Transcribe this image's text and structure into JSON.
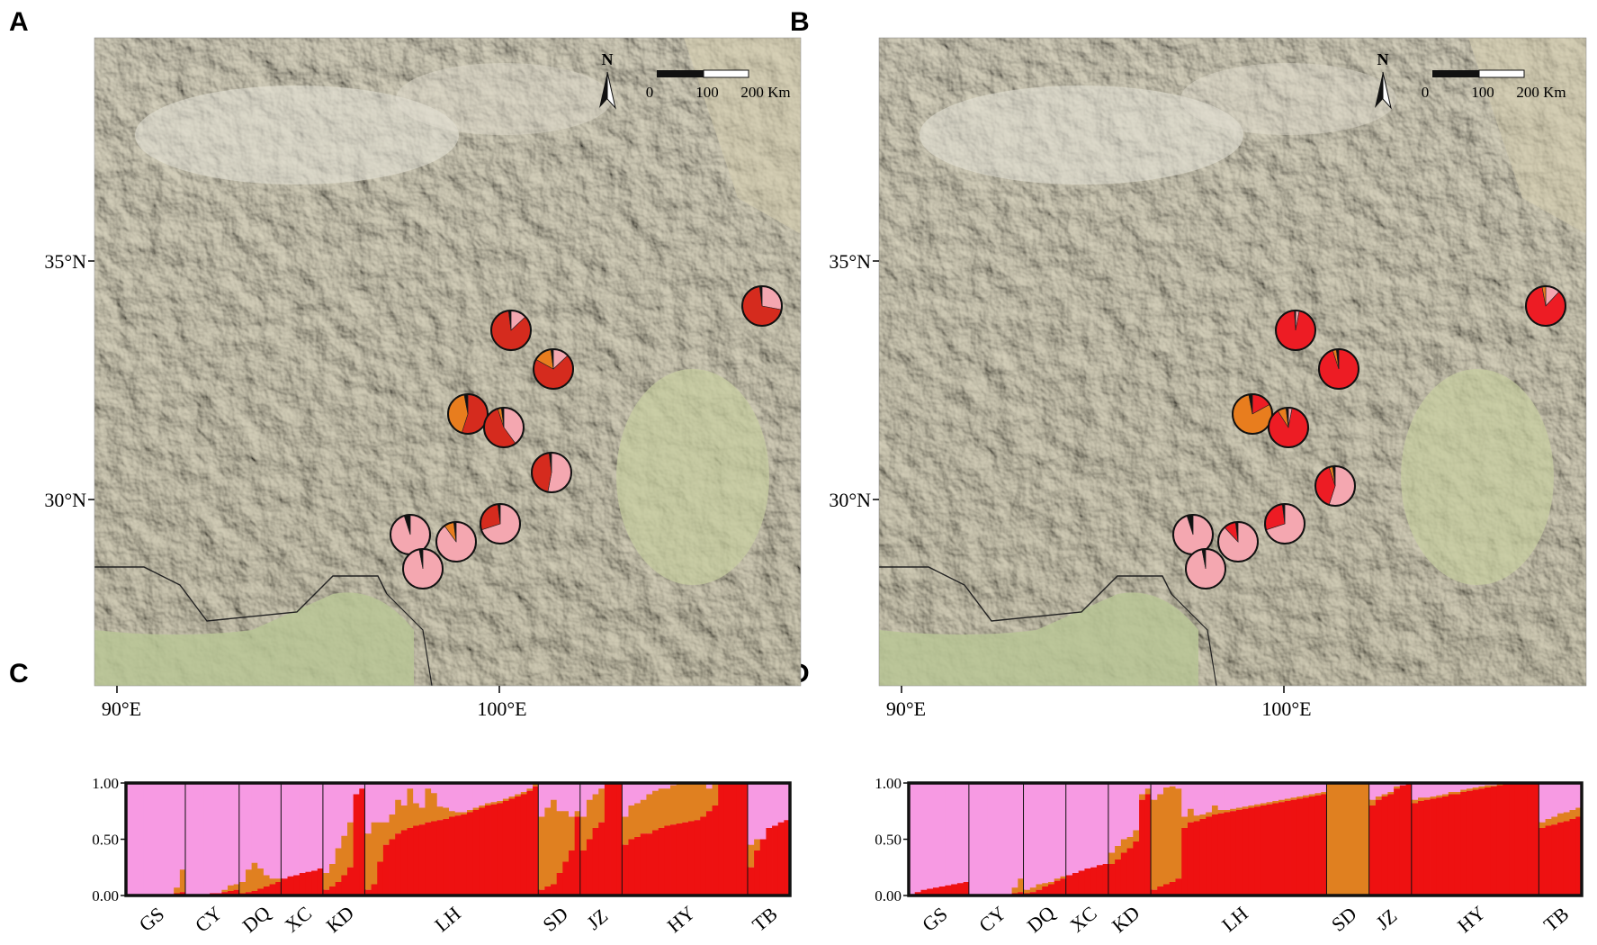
{
  "panels": {
    "A": {
      "letter": "A"
    },
    "B": {
      "letter": "B"
    },
    "C": {
      "letter": "C"
    },
    "D": {
      "letter": "D"
    }
  },
  "map": {
    "lat_labels": [
      "35°N",
      "30°N"
    ],
    "lon_labels": [
      "90°E",
      "100°E"
    ],
    "north_label": "N",
    "scale_ticks": [
      "0",
      "100",
      "200 Km"
    ]
  },
  "colors": {
    "pink": "#f4a7b0",
    "red": "#ed1c24",
    "dark_red": "#d52b1e",
    "orange": "#e87d1e",
    "black": "#111111",
    "bar_pink": "#f79ae3",
    "bar_red": "#ee1111",
    "bar_orange": "#e08020"
  },
  "pies": {
    "A": [
      {
        "fractions": {
          "dark_red": 0.7,
          "pink": 0.28,
          "black": 0.02
        }
      },
      {
        "fractions": {
          "dark_red": 0.85,
          "pink": 0.13,
          "black": 0.02
        }
      },
      {
        "fractions": {
          "dark_red": 0.7,
          "orange": 0.15,
          "pink": 0.13,
          "black": 0.02
        }
      },
      {
        "fractions": {
          "dark_red": 0.55,
          "orange": 0.42,
          "black": 0.03
        }
      },
      {
        "fractions": {
          "dark_red": 0.55,
          "pink": 0.4,
          "orange": 0.03,
          "black": 0.02
        }
      },
      {
        "fractions": {
          "dark_red": 0.45,
          "pink": 0.53,
          "black": 0.02
        }
      },
      {
        "fractions": {
          "pink": 0.7,
          "dark_red": 0.28,
          "black": 0.02
        }
      },
      {
        "fractions": {
          "pink": 0.9,
          "orange": 0.08,
          "black": 0.02
        }
      },
      {
        "fractions": {
          "pink": 0.95,
          "black": 0.05
        }
      },
      {
        "fractions": {
          "pink": 0.97,
          "black": 0.03
        }
      }
    ],
    "B": [
      {
        "fractions": {
          "red": 0.85,
          "pink": 0.12,
          "orange": 0.03
        }
      },
      {
        "fractions": {
          "red": 0.96,
          "pink": 0.03,
          "black": 0.01
        }
      },
      {
        "fractions": {
          "red": 0.95,
          "orange": 0.03,
          "black": 0.02
        }
      },
      {
        "fractions": {
          "orange": 0.8,
          "red": 0.17,
          "black": 0.03
        }
      },
      {
        "fractions": {
          "red": 0.88,
          "orange": 0.07,
          "pink": 0.03,
          "black": 0.02
        }
      },
      {
        "fractions": {
          "pink": 0.55,
          "red": 0.4,
          "orange": 0.03,
          "black": 0.02
        }
      },
      {
        "fractions": {
          "pink": 0.7,
          "red": 0.28,
          "black": 0.02
        }
      },
      {
        "fractions": {
          "pink": 0.88,
          "red": 0.1,
          "black": 0.02
        }
      },
      {
        "fractions": {
          "pink": 0.95,
          "black": 0.05
        }
      },
      {
        "fractions": {
          "pink": 0.97,
          "black": 0.03
        }
      }
    ]
  },
  "structure_C": {
    "yticks": [
      "1.00",
      "0.50",
      "0.00"
    ],
    "groups": [
      {
        "label": "GS",
        "n": 10,
        "red": [
          0,
          0,
          0,
          0,
          0,
          0,
          0,
          0.01,
          0.02,
          0.03
        ],
        "orange": [
          0,
          0,
          0,
          0,
          0,
          0,
          0,
          0,
          0.05,
          0.2
        ]
      },
      {
        "label": "CY",
        "n": 9,
        "red": [
          0,
          0,
          0,
          0,
          0.02,
          0.02,
          0.03,
          0.04,
          0.05
        ],
        "orange": [
          0,
          0,
          0,
          0,
          0,
          0,
          0.02,
          0.05,
          0.05
        ]
      },
      {
        "label": "DQ",
        "n": 7,
        "red": [
          0.02,
          0.03,
          0.04,
          0.06,
          0.08,
          0.1,
          0.12
        ],
        "orange": [
          0.1,
          0.2,
          0.25,
          0.18,
          0.1,
          0.05,
          0.03
        ]
      },
      {
        "label": "XC",
        "n": 7,
        "red": [
          0.15,
          0.17,
          0.18,
          0.2,
          0.21,
          0.22,
          0.24
        ],
        "orange": [
          0,
          0,
          0,
          0,
          0,
          0,
          0
        ]
      },
      {
        "label": "KD",
        "n": 7,
        "red": [
          0.05,
          0.08,
          0.12,
          0.18,
          0.25,
          0.9,
          0.95
        ],
        "orange": [
          0.15,
          0.2,
          0.3,
          0.35,
          0.4,
          0,
          0
        ]
      },
      {
        "label": "LH",
        "n": 29,
        "red": [
          0.05,
          0.1,
          0.3,
          0.45,
          0.5,
          0.55,
          0.58,
          0.6,
          0.62,
          0.63,
          0.65,
          0.66,
          0.67,
          0.68,
          0.7,
          0.71,
          0.72,
          0.74,
          0.76,
          0.78,
          0.8,
          0.81,
          0.82,
          0.84,
          0.86,
          0.88,
          0.9,
          0.93,
          0.97
        ],
        "orange": [
          0.5,
          0.55,
          0.35,
          0.2,
          0.22,
          0.3,
          0.22,
          0.35,
          0.2,
          0.15,
          0.3,
          0.25,
          0.12,
          0.1,
          0.05,
          0.03,
          0.02,
          0.02,
          0.02,
          0.02,
          0.02,
          0.02,
          0.02,
          0.02,
          0.02,
          0.02,
          0.02,
          0.02,
          0.02
        ]
      },
      {
        "label": "SD",
        "n": 7,
        "red": [
          0.05,
          0.08,
          0.1,
          0.2,
          0.3,
          0.4,
          0.7
        ],
        "orange": [
          0.65,
          0.7,
          0.75,
          0.55,
          0.45,
          0.3,
          0.05
        ]
      },
      {
        "label": "JZ",
        "n": 7,
        "red": [
          0.4,
          0.5,
          0.6,
          0.65,
          1.0,
          1.0,
          1.0
        ],
        "orange": [
          0.3,
          0.35,
          0.3,
          0.3,
          0,
          0,
          0
        ]
      },
      {
        "label": "HY",
        "n": 21,
        "red": [
          0.45,
          0.5,
          0.52,
          0.55,
          0.55,
          0.58,
          0.6,
          0.62,
          0.63,
          0.64,
          0.65,
          0.66,
          0.67,
          0.7,
          0.75,
          0.8,
          1.0,
          1.0,
          1.0,
          1.0,
          1.0
        ],
        "orange": [
          0.25,
          0.3,
          0.3,
          0.3,
          0.35,
          0.35,
          0.35,
          0.33,
          0.35,
          0.36,
          0.34,
          0.34,
          0.33,
          0.3,
          0.2,
          0.2,
          0,
          0,
          0,
          0,
          0
        ]
      },
      {
        "label": "TB",
        "n": 7,
        "red": [
          0.25,
          0.4,
          0.5,
          0.6,
          0.62,
          0.65,
          0.67
        ],
        "orange": [
          0.2,
          0.1,
          0,
          0,
          0,
          0,
          0
        ]
      }
    ]
  },
  "structure_D": {
    "yticks": [
      "1.00",
      "0.50",
      "0.00"
    ],
    "groups": [
      {
        "label": "GS",
        "n": 10,
        "red": [
          0,
          0.03,
          0.05,
          0.06,
          0.07,
          0.08,
          0.09,
          0.1,
          0.11,
          0.12
        ],
        "orange": [
          0,
          0,
          0,
          0,
          0,
          0,
          0,
          0,
          0,
          0
        ]
      },
      {
        "label": "CY",
        "n": 9,
        "red": [
          0,
          0,
          0,
          0,
          0,
          0.01,
          0.01,
          0.02,
          0.03
        ],
        "orange": [
          0,
          0,
          0,
          0,
          0,
          0,
          0,
          0.05,
          0.12
        ]
      },
      {
        "label": "DQ",
        "n": 7,
        "red": [
          0.02,
          0.03,
          0.05,
          0.08,
          0.1,
          0.13,
          0.15
        ],
        "orange": [
          0.03,
          0.04,
          0.05,
          0.03,
          0.02,
          0.02,
          0.02
        ]
      },
      {
        "label": "XC",
        "n": 7,
        "red": [
          0.18,
          0.2,
          0.22,
          0.24,
          0.25,
          0.27,
          0.28
        ],
        "orange": [
          0,
          0,
          0,
          0,
          0,
          0,
          0
        ]
      },
      {
        "label": "KD",
        "n": 7,
        "red": [
          0.28,
          0.32,
          0.38,
          0.42,
          0.48,
          0.85,
          0.9
        ],
        "orange": [
          0.1,
          0.12,
          0.12,
          0.1,
          0.1,
          0.05,
          0.05
        ]
      },
      {
        "label": "LH",
        "n": 29,
        "red": [
          0.05,
          0.08,
          0.1,
          0.12,
          0.15,
          0.6,
          0.65,
          0.66,
          0.68,
          0.7,
          0.72,
          0.73,
          0.74,
          0.75,
          0.76,
          0.77,
          0.78,
          0.79,
          0.8,
          0.81,
          0.82,
          0.83,
          0.84,
          0.85,
          0.86,
          0.87,
          0.88,
          0.89,
          0.9
        ],
        "orange": [
          0.8,
          0.82,
          0.86,
          0.85,
          0.8,
          0.1,
          0.12,
          0.05,
          0.04,
          0.04,
          0.08,
          0.03,
          0.02,
          0.02,
          0.02,
          0.02,
          0.02,
          0.02,
          0.02,
          0.02,
          0.02,
          0.02,
          0.02,
          0.02,
          0.02,
          0.02,
          0.02,
          0.02,
          0.02
        ]
      },
      {
        "label": "SD",
        "n": 7,
        "red": [
          0,
          0,
          0,
          0,
          0,
          0,
          0
        ],
        "orange": [
          1.0,
          1.0,
          1.0,
          1.0,
          1.0,
          1.0,
          1.0
        ]
      },
      {
        "label": "JZ",
        "n": 7,
        "red": [
          0.8,
          0.85,
          0.88,
          0.9,
          0.95,
          0.98,
          1.0
        ],
        "orange": [
          0.05,
          0.03,
          0.02,
          0.02,
          0.02,
          0,
          0
        ]
      },
      {
        "label": "HY",
        "n": 21,
        "red": [
          0.82,
          0.84,
          0.85,
          0.86,
          0.87,
          0.88,
          0.9,
          0.9,
          0.92,
          0.93,
          0.94,
          0.95,
          0.96,
          0.97,
          0.98,
          0.99,
          1.0,
          1.0,
          1.0,
          1.0,
          1.0
        ],
        "orange": [
          0.03,
          0.03,
          0.02,
          0.02,
          0.02,
          0.02,
          0.02,
          0.02,
          0.02,
          0.02,
          0.02,
          0.02,
          0.02,
          0.01,
          0.01,
          0,
          0,
          0,
          0,
          0,
          0
        ]
      },
      {
        "label": "TB",
        "n": 7,
        "red": [
          0.6,
          0.62,
          0.63,
          0.65,
          0.66,
          0.68,
          0.7
        ],
        "orange": [
          0.05,
          0.06,
          0.07,
          0.08,
          0.08,
          0.08,
          0.08
        ]
      }
    ]
  }
}
